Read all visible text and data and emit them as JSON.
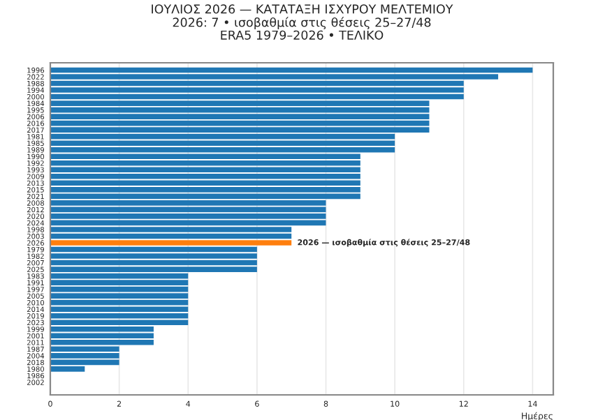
{
  "chart_data": {
    "type": "bar",
    "orientation": "horizontal",
    "title": "ΙΟΥΛΙΟΣ 2026 — ΚΑΤΑΤΑΞΗ ΙΣΧΥΡΟΥ ΜΕΛΤΕΜΙΟΥ\n2026: 7 • ισοβαθμία στις θέσεις 25–27/48\nERA5 1979–2026 • ΤΕΛΙΚΟ",
    "xlabel": "Ημέρες",
    "categories": [
      "1996",
      "2022",
      "1988",
      "1994",
      "2000",
      "1984",
      "1995",
      "2006",
      "2016",
      "2017",
      "1981",
      "1985",
      "1989",
      "1990",
      "1992",
      "1993",
      "2009",
      "2013",
      "2015",
      "2021",
      "2008",
      "2012",
      "2020",
      "2024",
      "1998",
      "2003",
      "2026",
      "1979",
      "1982",
      "2007",
      "2025",
      "1983",
      "1991",
      "1997",
      "2005",
      "2010",
      "2014",
      "2019",
      "2023",
      "1999",
      "2001",
      "2011",
      "1987",
      "2004",
      "2018",
      "1980",
      "1986",
      "2002"
    ],
    "values": [
      14,
      13,
      12,
      12,
      12,
      11,
      11,
      11,
      11,
      11,
      10,
      10,
      10,
      9,
      9,
      9,
      9,
      9,
      9,
      9,
      8,
      8,
      8,
      8,
      7,
      7,
      7,
      6,
      6,
      6,
      6,
      4,
      4,
      4,
      4,
      4,
      4,
      4,
      4,
      3,
      3,
      3,
      2,
      2,
      2,
      1,
      0,
      0
    ],
    "colors": [
      "#1f77b4",
      "#1f77b4",
      "#1f77b4",
      "#1f77b4",
      "#1f77b4",
      "#1f77b4",
      "#1f77b4",
      "#1f77b4",
      "#1f77b4",
      "#1f77b4",
      "#1f77b4",
      "#1f77b4",
      "#1f77b4",
      "#1f77b4",
      "#1f77b4",
      "#1f77b4",
      "#1f77b4",
      "#1f77b4",
      "#1f77b4",
      "#1f77b4",
      "#1f77b4",
      "#1f77b4",
      "#1f77b4",
      "#1f77b4",
      "#1f77b4",
      "#1f77b4",
      "#ff7f0e",
      "#1f77b4",
      "#1f77b4",
      "#1f77b4",
      "#1f77b4",
      "#1f77b4",
      "#1f77b4",
      "#1f77b4",
      "#1f77b4",
      "#1f77b4",
      "#1f77b4",
      "#1f77b4",
      "#1f77b4",
      "#1f77b4",
      "#1f77b4",
      "#1f77b4",
      "#1f77b4",
      "#1f77b4",
      "#1f77b4",
      "#1f77b4",
      null,
      null
    ],
    "xlim": [
      0,
      14.6
    ],
    "xticks": [
      0,
      2,
      4,
      6,
      8,
      10,
      12,
      14
    ],
    "grid": "x",
    "annotations": [
      {
        "text": "2026 — ισοβαθμία στις θέσεις 25–27/48",
        "x": 7,
        "y": "2026"
      }
    ]
  }
}
